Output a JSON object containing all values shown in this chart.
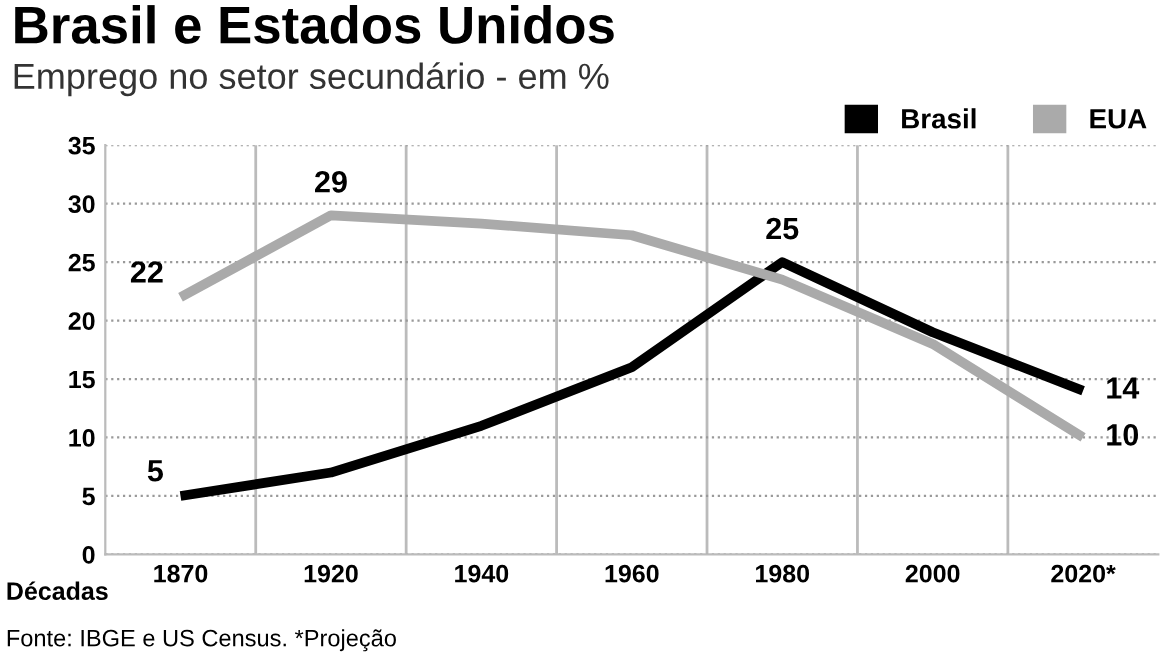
{
  "chart_data": {
    "type": "line",
    "title": "Brasil e Estados Unidos",
    "subtitle": "Emprego no setor secundário - em %",
    "xlabel": "Décadas",
    "categories": [
      "1870",
      "1920",
      "1940",
      "1960",
      "1980",
      "2000",
      "2020*"
    ],
    "series": [
      {
        "name": "Brasil",
        "color": "#000000",
        "values": [
          5,
          7,
          11,
          16,
          25,
          19,
          14
        ],
        "value_labels": [
          "5",
          null,
          null,
          null,
          "25",
          null,
          "14"
        ]
      },
      {
        "name": "EUA",
        "color": "#aaaaaa",
        "values": [
          22,
          29,
          28.3,
          27.3,
          23.5,
          18,
          10
        ],
        "value_labels": [
          "22",
          "29",
          null,
          null,
          null,
          null,
          "10"
        ]
      }
    ],
    "ylim": [
      0,
      35
    ],
    "yticks": [
      0,
      5,
      10,
      15,
      20,
      25,
      30,
      35
    ],
    "grid": "y",
    "legend": "top right",
    "marker": "none",
    "line_style": "solid",
    "annotations": [
      "Fonte: IBGE e US Census. *Projeção"
    ]
  }
}
